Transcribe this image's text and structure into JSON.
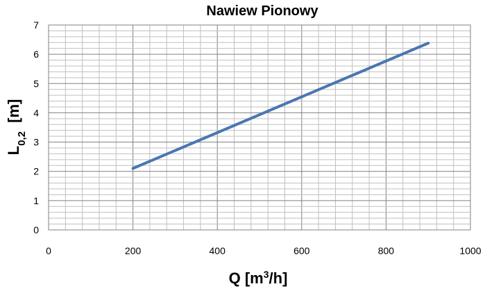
{
  "chart_data": {
    "type": "line",
    "title": "Nawiew Pionowy",
    "xlabel": {
      "main": "Q [m",
      "sup": "3",
      "tail": "/h]"
    },
    "ylabel": {
      "main": "L",
      "sub": "0,2",
      "tail": "  [m]"
    },
    "xlim": [
      0,
      1000
    ],
    "ylim": [
      0,
      7
    ],
    "x_ticks": [
      "0",
      "200",
      "400",
      "600",
      "800",
      "1000"
    ],
    "y_ticks": [
      "0",
      "1",
      "2",
      "3",
      "4",
      "5",
      "6",
      "7"
    ],
    "grid": true,
    "series": [
      {
        "x": [
          200,
          900
        ],
        "y": [
          2.1,
          6.38
        ],
        "color": "#4a76b2"
      }
    ]
  }
}
